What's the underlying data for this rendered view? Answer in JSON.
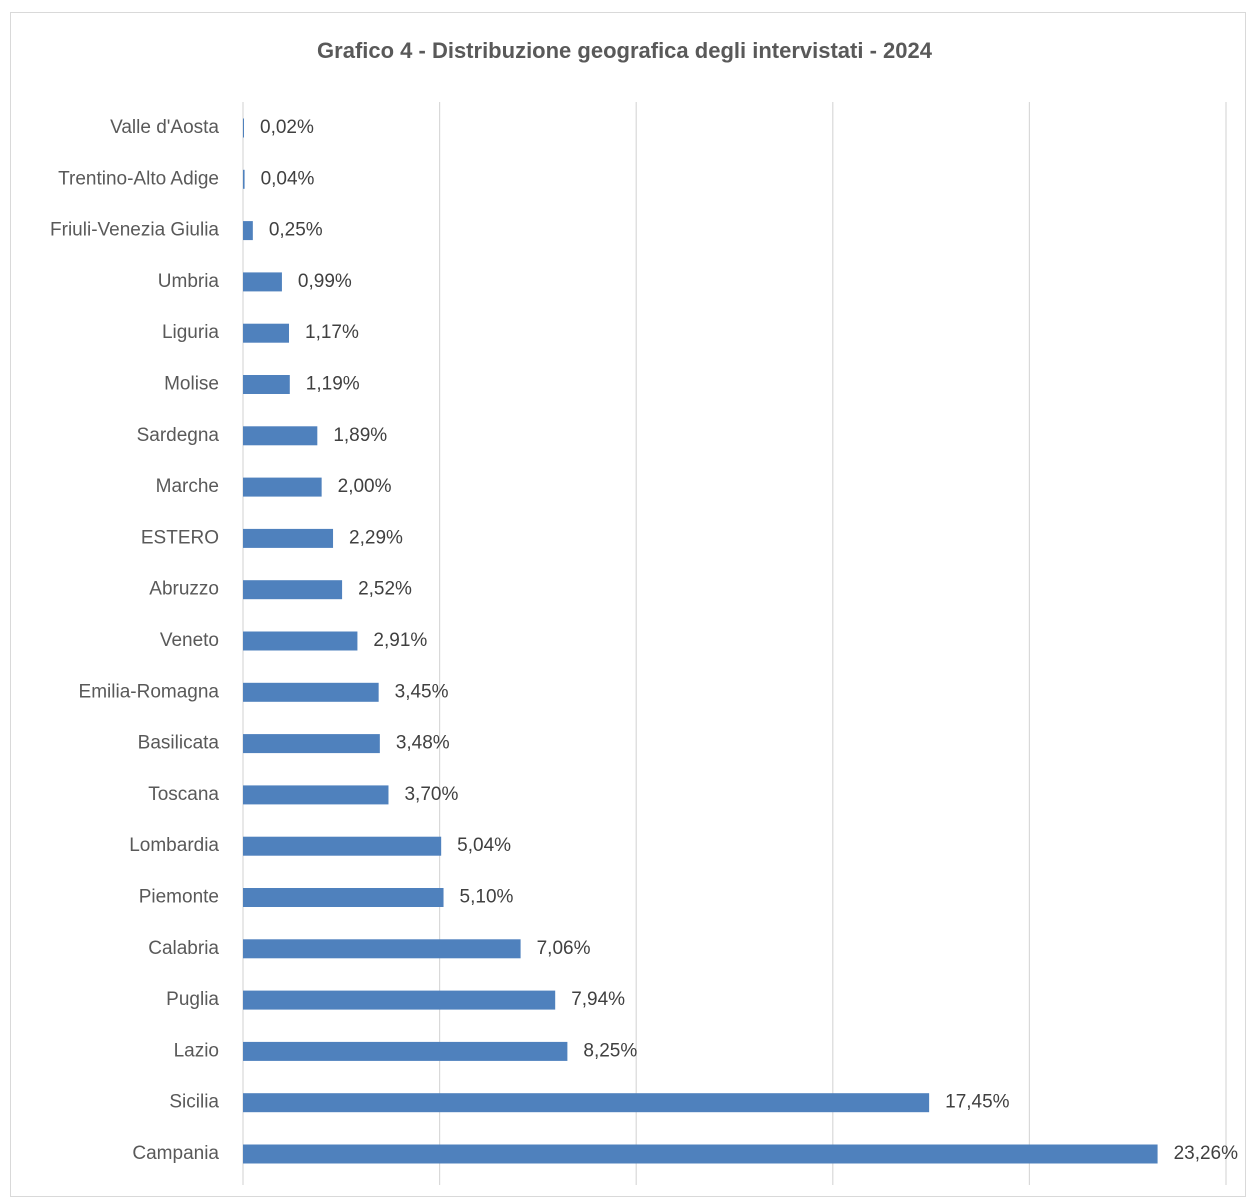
{
  "chart_data": {
    "type": "bar",
    "orientation": "horizontal",
    "title": "Grafico 4 - Distribuzione geografica degli intervistati - 2024",
    "xlabel": "",
    "ylabel": "",
    "xlim": [
      0,
      25
    ],
    "grid": "vertical",
    "legend": "none",
    "bar_color": "#4f81bd",
    "categories": [
      "Valle d'Aosta",
      "Trentino-Alto Adige",
      "Friuli-Venezia Giulia",
      "Umbria",
      "Liguria",
      "Molise",
      "Sardegna",
      "Marche",
      "ESTERO",
      "Abruzzo",
      "Veneto",
      "Emilia-Romagna",
      "Basilicata",
      "Toscana",
      "Lombardia",
      "Piemonte",
      "Calabria",
      "Puglia",
      "Lazio",
      "Sicilia",
      "Campania"
    ],
    "values": [
      0.02,
      0.04,
      0.25,
      0.99,
      1.17,
      1.19,
      1.89,
      2.0,
      2.29,
      2.52,
      2.91,
      3.45,
      3.48,
      3.7,
      5.04,
      5.1,
      7.06,
      7.94,
      8.25,
      17.45,
      23.26
    ],
    "value_labels": [
      "0,02%",
      "0,04%",
      "0,25%",
      "0,99%",
      "1,17%",
      "1,19%",
      "1,89%",
      "2,00%",
      "2,29%",
      "2,52%",
      "2,91%",
      "3,45%",
      "3,48%",
      "3,70%",
      "5,04%",
      "5,10%",
      "7,06%",
      "7,94%",
      "8,25%",
      "17,45%",
      "23,26%"
    ]
  }
}
